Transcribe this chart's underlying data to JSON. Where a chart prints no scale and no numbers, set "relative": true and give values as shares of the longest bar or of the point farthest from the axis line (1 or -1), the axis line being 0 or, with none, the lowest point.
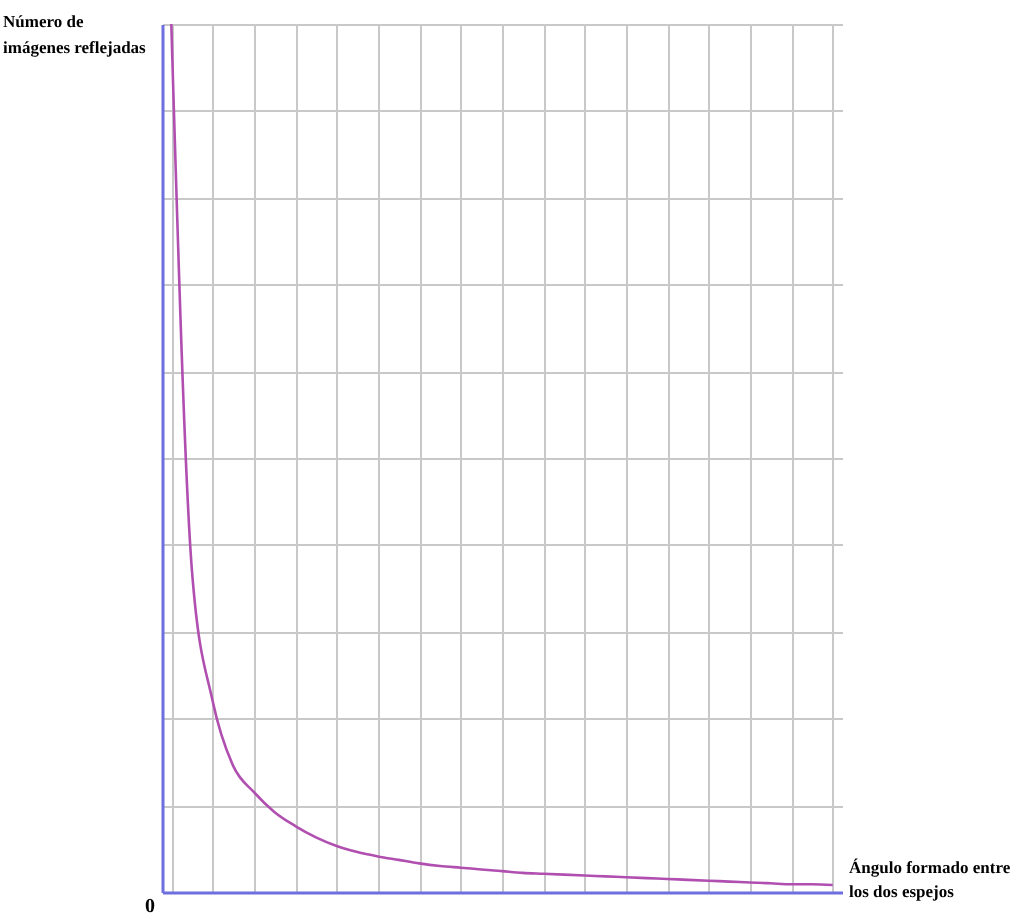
{
  "chart_data": {
    "type": "line",
    "relative": true,
    "xlabel": "Ángulo formado entre los dos espejos",
    "ylabel": "Número de imágenes reflejadas",
    "annotations": [
      "0"
    ],
    "grid": true,
    "marker": "none",
    "line_style": "solid",
    "categories": [
      null,
      null,
      null,
      null,
      null,
      null,
      null,
      null,
      null,
      null,
      null,
      null,
      null,
      null,
      null,
      null,
      null,
      null,
      null,
      null,
      null,
      null,
      null,
      null,
      null,
      null,
      null,
      null,
      null,
      null,
      null,
      null,
      null
    ],
    "series": [
      {
        "color": "#b04fb0",
        "values": [
          1,
          0.37,
          0.22,
          0.145,
          0.115,
          0.092,
          0.076,
          0.063,
          0.053,
          0.046,
          0.041,
          0.037,
          0.033,
          0.03,
          0.028,
          0.026,
          0.024,
          0.022,
          0.021,
          0.02,
          0.019,
          0.018,
          0.017,
          0.016,
          0.015,
          0.014,
          0.013,
          0.012,
          0.011,
          0.01,
          0.009,
          0.009,
          0.008
        ]
      }
    ]
  }
}
